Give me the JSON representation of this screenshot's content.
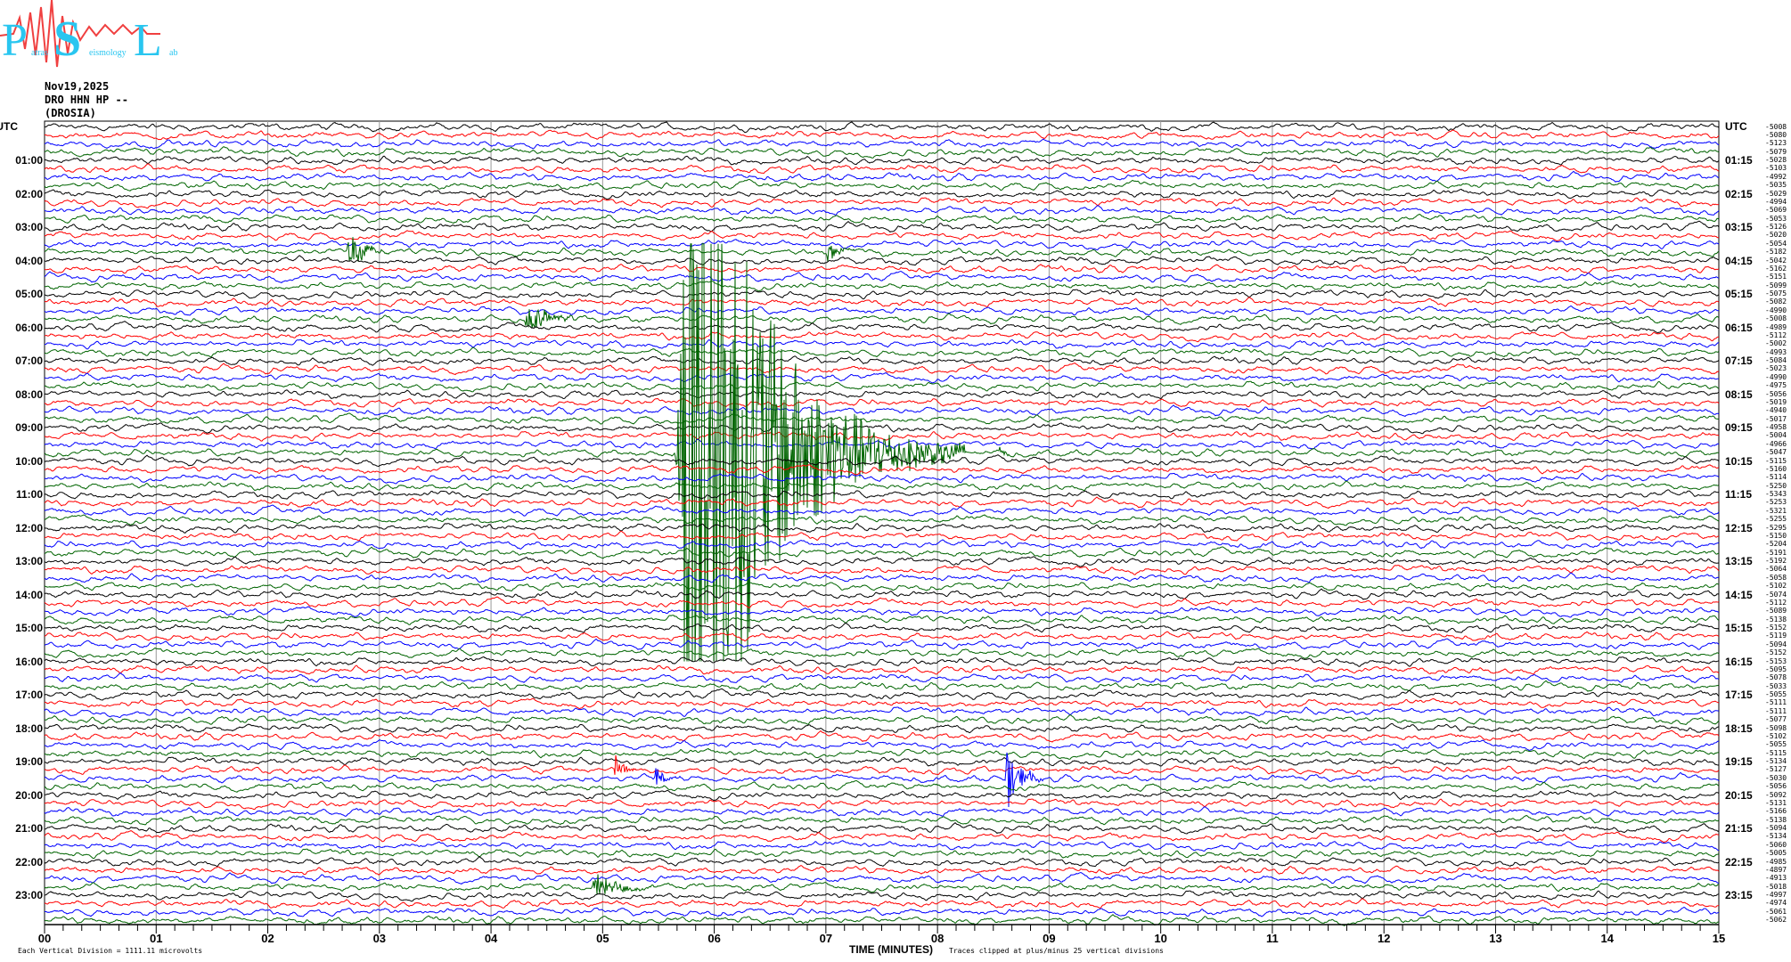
{
  "logo": {
    "text": "Patras Seismology Lab",
    "letters": [
      "P",
      "S",
      "L"
    ],
    "text_color": "#29c6f0",
    "trace_color": "#f04040"
  },
  "header": {
    "date": "Nov19,2025",
    "channel": "DRO HHN HP --",
    "station": "(DROSIA)"
  },
  "footer": {
    "scale_note": "Each Vertical Division = 1111.11 microvolts",
    "xlabel": "TIME (MINUTES)",
    "clip_note": "Traces clipped at plus/minus 25 vertical divisions"
  },
  "chart_data": {
    "type": "line",
    "subtype": "helicorder",
    "xlabel": "TIME (MINUTES)",
    "xlim": [
      0,
      15
    ],
    "x_ticks": [
      "00",
      "01",
      "02",
      "03",
      "04",
      "05",
      "06",
      "07",
      "08",
      "09",
      "10",
      "11",
      "12",
      "13",
      "14",
      "15"
    ],
    "minutes_per_line": 15,
    "clip_divisions": 25,
    "grid": "vertical lines each minute",
    "trace_colors": [
      "#000000",
      "#ff0000",
      "#0000ff",
      "#006400"
    ],
    "left_axis_title": "UTC",
    "right_axis_title": "UTC",
    "left_hour_labels": [
      "01:00",
      "02:00",
      "03:00",
      "04:00",
      "05:00",
      "06:00",
      "07:00",
      "08:00",
      "09:00",
      "10:00",
      "11:00",
      "12:00",
      "13:00",
      "14:00",
      "15:00",
      "16:00",
      "17:00",
      "18:00",
      "19:00",
      "20:00",
      "21:00",
      "22:00",
      "23:00"
    ],
    "right_hour_labels": [
      "01:15",
      "02:15",
      "03:15",
      "04:15",
      "05:15",
      "06:15",
      "07:15",
      "08:15",
      "09:15",
      "10:15",
      "11:15",
      "12:15",
      "13:15",
      "14:15",
      "15:15",
      "16:15",
      "17:15",
      "18:15",
      "19:15",
      "20:15",
      "21:15",
      "22:15",
      "23:15"
    ],
    "trace_means": [
      -5008,
      -5080,
      -5123,
      -5079,
      -5028,
      -5103,
      -4992,
      -5035,
      -5029,
      -4994,
      -5069,
      -5053,
      -5126,
      -5020,
      -5054,
      -5182,
      -5042,
      -5162,
      -5151,
      -5099,
      -5075,
      -5082,
      -4990,
      -5008,
      -4989,
      -5112,
      -5002,
      -4993,
      -5084,
      -5023,
      -4990,
      -4975,
      -5056,
      -5019,
      -4940,
      -5017,
      -4958,
      -5004,
      -4966,
      -5047,
      -5115,
      -5160,
      -5114,
      -5250,
      -5343,
      -5253,
      -5321,
      -5255,
      -5295,
      -5150,
      -5204,
      -5191,
      -5192,
      -5064,
      -5058,
      -5102,
      -5074,
      -5112,
      -5089,
      -5138,
      -5152,
      -5119,
      -5094,
      -5152,
      -5153,
      -5095,
      -5078,
      -5033,
      -5055,
      -5111,
      -5111,
      -5077,
      -5098,
      -5102,
      -5055,
      -5115,
      -5134,
      -5127,
      -5030,
      -5056,
      -5092,
      -5131,
      -5166,
      -5138,
      -5094,
      -5134,
      -5060,
      -5005,
      -4985,
      -4897,
      -4913,
      -5018,
      -4997,
      -4974,
      -5061,
      -5062
    ],
    "events": [
      {
        "line_start": "09:45",
        "minute": 5.65,
        "duration_min": 2.6,
        "peak_divisions": 25
      },
      {
        "line_start": "03:45",
        "minute": 2.7,
        "duration_min": 0.4,
        "peak_divisions": 2.2
      },
      {
        "line_start": "03:45",
        "minute": 7.0,
        "duration_min": 0.25,
        "peak_divisions": 1.2
      },
      {
        "line_start": "05:45",
        "minute": 4.3,
        "duration_min": 0.45,
        "peak_divisions": 2.2
      },
      {
        "line_start": "19:15",
        "minute": 5.1,
        "duration_min": 0.2,
        "peak_divisions": 2.0
      },
      {
        "line_start": "19:30",
        "minute": 5.45,
        "duration_min": 0.25,
        "peak_divisions": 1.3
      },
      {
        "line_start": "19:30",
        "minute": 8.6,
        "duration_min": 0.35,
        "peak_divisions": 3.5
      },
      {
        "line_start": "22:45",
        "minute": 4.9,
        "duration_min": 0.6,
        "peak_divisions": 1.6
      },
      {
        "line_start": "09:45",
        "minute": 8.55,
        "duration_min": 0.1,
        "peak_divisions": 1.0
      }
    ]
  }
}
